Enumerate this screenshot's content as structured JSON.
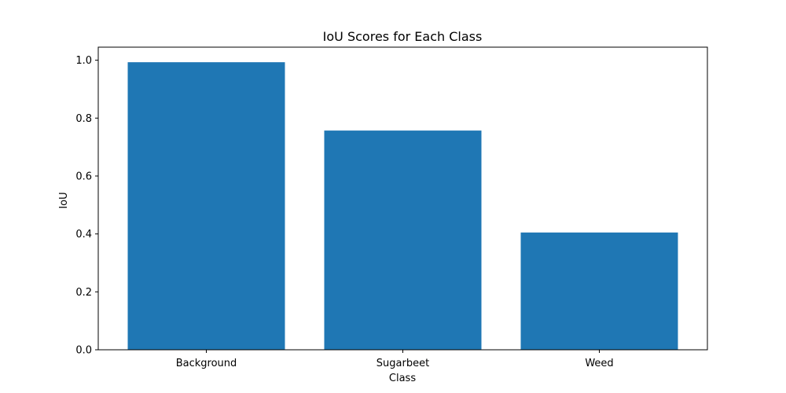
{
  "chart_data": {
    "type": "bar",
    "title": "IoU Scores for Each Class",
    "xlabel": "Class",
    "ylabel": "IoU",
    "categories": [
      "Background",
      "Sugarbeet",
      "Weed"
    ],
    "values": [
      0.993,
      0.757,
      0.405
    ],
    "ylim": [
      0,
      1.045
    ],
    "yticks": [
      0.0,
      0.2,
      0.4,
      0.6,
      0.8,
      1.0
    ],
    "ytick_labels": [
      "0.0",
      "0.2",
      "0.4",
      "0.6",
      "0.8",
      "1.0"
    ],
    "bar_color": "#1f77b4",
    "grid": false
  }
}
